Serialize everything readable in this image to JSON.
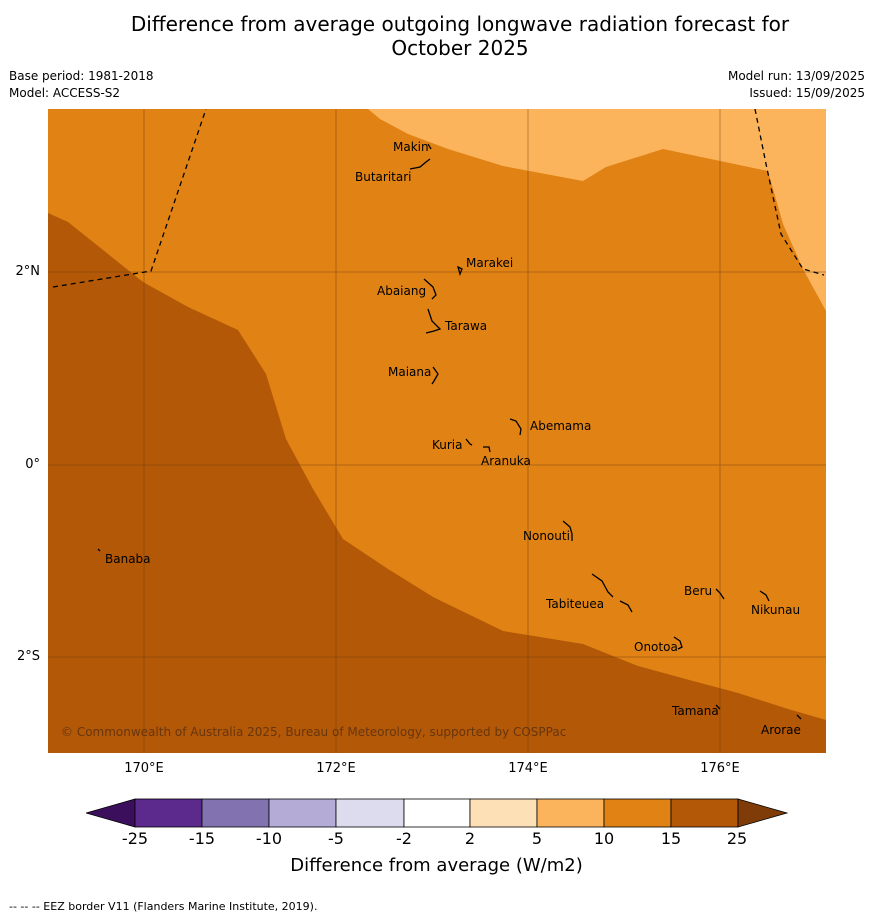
{
  "title_line1": "Difference from average outgoing longwave radiation forecast for",
  "title_line2": "October 2025",
  "base_period": "Base period: 1981-2018",
  "model": "Model: ACCESS-S2",
  "model_run": "Model run: 13/09/2025",
  "issued": "Issued: 15/09/2025",
  "copyright": "© Commonwealth of Australia 2025, Bureau of Meteorology, supported by COSPPac",
  "lat_labels": [
    "2°N",
    "0°",
    "2°S"
  ],
  "lon_labels": [
    "170°E",
    "172°E",
    "174°E",
    "176°E"
  ],
  "places": [
    "Makin",
    "Butaritari",
    "Marakei",
    "Abaiang",
    "Tarawa",
    "Maiana",
    "Abemama",
    "Kuria",
    "Aranuka",
    "Nonouti",
    "Banaba",
    "Tabiteuea",
    "Beru",
    "Nikunau",
    "Onotoa",
    "Tamana",
    "Arorae"
  ],
  "colorbar": {
    "ticks": [
      "-25",
      "-15",
      "-10",
      "-5",
      "-2",
      "2",
      "5",
      "10",
      "15",
      "25"
    ],
    "colors": [
      "#3b0f5c",
      "#5b2a8c",
      "#8273b0",
      "#b4acd6",
      "#dcdcee",
      "#ffffff",
      "#fde0b6",
      "#fbb45c",
      "#e08214",
      "#b35806",
      "#7f3b08"
    ],
    "label": "Difference from average (W/m2)"
  },
  "footer": "--  --  -- EEZ border V11 (Flanders Marine Institute, 2019)."
}
